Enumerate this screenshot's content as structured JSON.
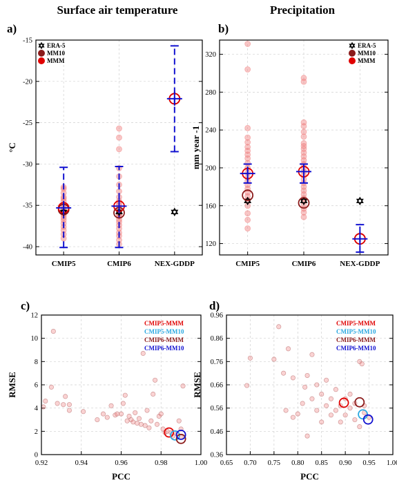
{
  "titles": [
    "Surface air temperature",
    "Precipitation"
  ],
  "colors": {
    "faint": "#f08080",
    "mmm": "#e00000",
    "mm10": "#8b1a1a",
    "blue": "#1010d0",
    "cyan": "#2aa8e0",
    "grid": "#cfcfcf"
  },
  "chart_data": [
    {
      "panel": "a)",
      "type": "scatter",
      "title": "Surface air temperature",
      "ylabel": "°C",
      "xlabel": "",
      "ylim": [
        -41,
        -15
      ],
      "yticks": [
        -40,
        -35,
        -30,
        -25,
        -20,
        -15
      ],
      "categories": [
        "CMIP5",
        "CMIP6",
        "NEX-GDDP"
      ],
      "legend": [
        "ERA-5",
        "MM10",
        "MMM"
      ],
      "legend_position": "top-left",
      "grid": true,
      "models": [
        [
          -32.8,
          -33.5,
          -34.0,
          -34.5,
          -35.0,
          -35.3,
          -35.6,
          -35.9,
          -36.2,
          -36.5,
          -36.8,
          -37.2,
          -37.6,
          -38.0,
          -38.5,
          -39.0,
          -34.2,
          -35.8,
          -36.0,
          -33.0
        ],
        [
          -25.7,
          -26.8,
          -28.2,
          -30.5,
          -31.5,
          -32.5,
          -33.3,
          -34.0,
          -34.5,
          -35.0,
          -35.3,
          -35.6,
          -36.0,
          -36.3,
          -36.7,
          -37.0,
          -37.4,
          -37.8,
          -38.3,
          -38.7,
          -39.2,
          -39.7,
          -36.1,
          -35.9,
          -34.8
        ]
      ],
      "mmm": [
        -35.3,
        -35.1,
        -22.1
      ],
      "mm10": [
        -35.5,
        -35.9,
        -22.1
      ],
      "era5": [
        -35.8,
        -35.8,
        -35.8
      ],
      "whisker_low": [
        -40.1,
        -40.1,
        -28.5
      ],
      "whisker_high": [
        -30.4,
        -30.3,
        -15.7
      ]
    },
    {
      "panel": "b)",
      "type": "scatter",
      "title": "Precipitation",
      "ylabel": "mm year -1",
      "xlabel": "",
      "ylim": [
        108,
        335
      ],
      "yticks": [
        120,
        160,
        200,
        240,
        280,
        320
      ],
      "categories": [
        "CMIP5",
        "CMIP6",
        "NEX-GDDP"
      ],
      "legend": [
        "ERA-5",
        "MM10",
        "MMM"
      ],
      "legend_position": "top-right",
      "grid": true,
      "models": [
        [
          331,
          304,
          242,
          232,
          227,
          222,
          218,
          214,
          210,
          205,
          200,
          195,
          190,
          186,
          182,
          178,
          174,
          170,
          166,
          160,
          152,
          145,
          136
        ],
        [
          295,
          291,
          248,
          244,
          238,
          233,
          226,
          223,
          220,
          216,
          212,
          208,
          204,
          200,
          196,
          192,
          188,
          184,
          180,
          176,
          172,
          168,
          165,
          161,
          157,
          153,
          148
        ]
      ],
      "mmm": [
        194,
        196,
        125
      ],
      "mm10": [
        171,
        163,
        125
      ],
      "era5": [
        165,
        165,
        165
      ],
      "whisker_low": [
        184,
        184,
        111
      ],
      "whisker_high": [
        204,
        204,
        140
      ]
    },
    {
      "panel": "c)",
      "type": "scatter",
      "xlabel": "PCC",
      "ylabel": "RMSE",
      "xlim": [
        0.92,
        1.0
      ],
      "ylim": [
        0,
        12
      ],
      "xticks": [
        "0.92",
        "0.94",
        "0.96",
        "0.98",
        "1.00"
      ],
      "yticks": [
        "0",
        "2",
        "4",
        "6",
        "8",
        "10",
        "12"
      ],
      "legend": [
        "CMIP5-MMM",
        "CMIP5-MM10",
        "CMIP6-MMM",
        "CMIP6-MM10"
      ],
      "legend_position": "top-right",
      "grid": true,
      "points": [
        [
          0.921,
          4.1
        ],
        [
          0.922,
          4.6
        ],
        [
          0.925,
          5.8
        ],
        [
          0.926,
          10.6
        ],
        [
          0.928,
          4.4
        ],
        [
          0.931,
          4.3
        ],
        [
          0.932,
          5.0
        ],
        [
          0.934,
          3.8
        ],
        [
          0.934,
          4.3
        ],
        [
          0.941,
          3.7
        ],
        [
          0.948,
          3.0
        ],
        [
          0.951,
          3.5
        ],
        [
          0.953,
          3.2
        ],
        [
          0.955,
          4.2
        ],
        [
          0.957,
          3.4
        ],
        [
          0.958,
          3.5
        ],
        [
          0.96,
          3.5
        ],
        [
          0.961,
          4.4
        ],
        [
          0.962,
          5.1
        ],
        [
          0.963,
          2.9
        ],
        [
          0.964,
          3.3
        ],
        [
          0.965,
          3.0
        ],
        [
          0.966,
          2.8
        ],
        [
          0.967,
          3.6
        ],
        [
          0.968,
          2.7
        ],
        [
          0.969,
          3.1
        ],
        [
          0.97,
          2.6
        ],
        [
          0.971,
          8.7
        ],
        [
          0.972,
          2.5
        ],
        [
          0.973,
          3.8
        ],
        [
          0.974,
          2.3
        ],
        [
          0.975,
          2.9
        ],
        [
          0.976,
          5.2
        ],
        [
          0.977,
          6.4
        ],
        [
          0.978,
          2.6
        ],
        [
          0.979,
          3.3
        ],
        [
          0.98,
          3.5
        ],
        [
          0.981,
          2.2
        ],
        [
          0.982,
          1.9
        ],
        [
          0.983,
          2.0
        ],
        [
          0.985,
          1.9
        ],
        [
          0.986,
          1.6
        ],
        [
          0.988,
          1.8
        ],
        [
          0.989,
          2.9
        ],
        [
          0.99,
          2.2
        ],
        [
          0.991,
          5.9
        ],
        [
          0.99,
          1.5
        ]
      ],
      "series": [
        {
          "name": "CMIP5-MMM",
          "x": 0.984,
          "y": 1.9
        },
        {
          "name": "CMIP5-MM10",
          "x": 0.987,
          "y": 1.65
        },
        {
          "name": "CMIP6-MMM",
          "x": 0.99,
          "y": 1.35
        },
        {
          "name": "CMIP6-MM10",
          "x": 0.99,
          "y": 1.7
        }
      ]
    },
    {
      "panel": "d)",
      "type": "scatter",
      "xlabel": "PCC",
      "ylabel": "RMSE",
      "xlim": [
        0.65,
        1.0
      ],
      "ylim": [
        0.36,
        0.96
      ],
      "xticks": [
        "0.65",
        "0.70",
        "0.75",
        "0.80",
        "0.85",
        "0.90",
        "0.95",
        "1.00"
      ],
      "yticks": [
        "0.36",
        "0.46",
        "0.56",
        "0.66",
        "0.76",
        "0.86",
        "0.96"
      ],
      "legend": [
        "CMIP5-MMM",
        "CMIP5-MM10",
        "CMIP6-MMM",
        "CMIP6-MM10"
      ],
      "legend_position": "top-right",
      "grid": true,
      "points": [
        [
          0.693,
          0.657
        ],
        [
          0.7,
          0.775
        ],
        [
          0.75,
          0.77
        ],
        [
          0.76,
          0.91
        ],
        [
          0.77,
          0.71
        ],
        [
          0.775,
          0.55
        ],
        [
          0.78,
          0.815
        ],
        [
          0.79,
          0.69
        ],
        [
          0.79,
          0.52
        ],
        [
          0.8,
          0.535
        ],
        [
          0.81,
          0.58
        ],
        [
          0.815,
          0.65
        ],
        [
          0.82,
          0.7
        ],
        [
          0.82,
          0.44
        ],
        [
          0.83,
          0.79
        ],
        [
          0.83,
          0.6
        ],
        [
          0.84,
          0.55
        ],
        [
          0.84,
          0.66
        ],
        [
          0.85,
          0.5
        ],
        [
          0.85,
          0.62
        ],
        [
          0.86,
          0.57
        ],
        [
          0.86,
          0.68
        ],
        [
          0.87,
          0.53
        ],
        [
          0.87,
          0.6
        ],
        [
          0.88,
          0.55
        ],
        [
          0.88,
          0.64
        ],
        [
          0.89,
          0.57
        ],
        [
          0.89,
          0.5
        ],
        [
          0.9,
          0.6
        ],
        [
          0.9,
          0.53
        ],
        [
          0.91,
          0.56
        ],
        [
          0.91,
          0.62
        ],
        [
          0.92,
          0.58
        ],
        [
          0.92,
          0.51
        ],
        [
          0.93,
          0.76
        ],
        [
          0.935,
          0.75
        ],
        [
          0.94,
          0.57
        ],
        [
          0.94,
          0.54
        ],
        [
          0.95,
          0.52
        ],
        [
          0.93,
          0.48
        ]
      ],
      "series": [
        {
          "name": "CMIP5-MMM",
          "x": 0.897,
          "y": 0.583
        },
        {
          "name": "CMIP5-MM10",
          "x": 0.937,
          "y": 0.533
        },
        {
          "name": "CMIP6-MMM",
          "x": 0.93,
          "y": 0.585
        },
        {
          "name": "CMIP6-MM10",
          "x": 0.948,
          "y": 0.511
        }
      ]
    }
  ]
}
